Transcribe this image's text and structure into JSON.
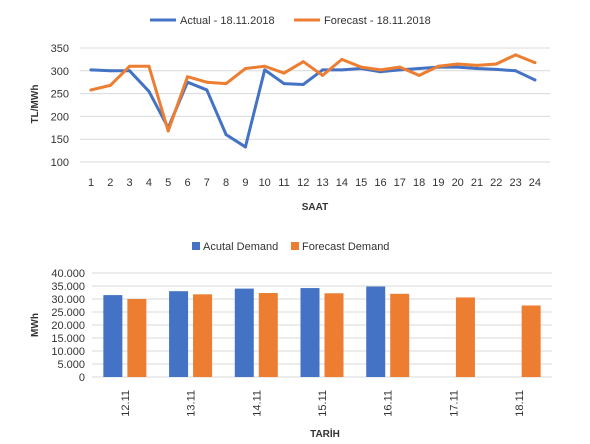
{
  "chart_data": [
    {
      "type": "line",
      "xlabel": "SAAT",
      "ylabel": "TL/MWh",
      "x": [
        1,
        2,
        3,
        4,
        5,
        6,
        7,
        8,
        9,
        10,
        11,
        12,
        13,
        14,
        15,
        16,
        17,
        18,
        19,
        20,
        21,
        22,
        23,
        24
      ],
      "ylim": [
        100,
        350
      ],
      "yticks": [
        100,
        150,
        200,
        250,
        300,
        350
      ],
      "grid": true,
      "legend_position": "top",
      "series": [
        {
          "name": "Actual - 18.11.2018",
          "color": "#4472c4",
          "values": [
            302,
            300,
            300,
            255,
            175,
            275,
            258,
            160,
            133,
            302,
            272,
            270,
            302,
            302,
            305,
            298,
            302,
            305,
            308,
            308,
            305,
            303,
            300,
            280
          ]
        },
        {
          "name": "Forecast - 18.11.2018",
          "color": "#ed7d31",
          "values": [
            258,
            268,
            310,
            310,
            168,
            287,
            275,
            272,
            305,
            310,
            295,
            320,
            290,
            325,
            308,
            302,
            308,
            290,
            310,
            315,
            312,
            315,
            335,
            318
          ]
        }
      ]
    },
    {
      "type": "bar",
      "xlabel": "TARİH",
      "ylabel": "MWh",
      "categories": [
        "12.11",
        "13.11",
        "14.11",
        "15.11",
        "16.11",
        "17.11",
        "18.11"
      ],
      "ylim": [
        0,
        40000
      ],
      "yticks": [
        "0",
        "5.000",
        "10.000",
        "15.000",
        "20.000",
        "25.000",
        "30.000",
        "35.000",
        "40.000"
      ],
      "grid": true,
      "legend_position": "top",
      "series": [
        {
          "name": "Acutal Demand",
          "color": "#4472c4",
          "values": [
            31500,
            33000,
            34000,
            34200,
            34800,
            null,
            null
          ]
        },
        {
          "name": "Forecast Demand",
          "color": "#ed7d31",
          "values": [
            30000,
            31800,
            32300,
            32200,
            32000,
            30600,
            27500
          ]
        }
      ]
    }
  ]
}
